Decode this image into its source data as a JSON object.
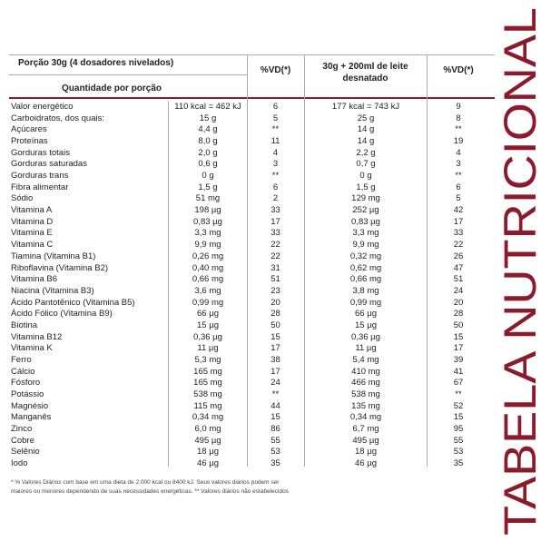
{
  "header": {
    "portion": "Porção 30g (4 dosadores nivelados)",
    "quantity": "Quantidade por porção",
    "columns": [
      "%VD(*)",
      "30g + 200ml de leite desnatado",
      "%VD(*)"
    ]
  },
  "table": {
    "rows": [
      [
        "Valor energético",
        "110 kcal = 462 kJ",
        6,
        "177 kcal = 743 kJ",
        9
      ],
      [
        "Carboidratos, dos quais:",
        "15 g",
        5,
        "25 g",
        8
      ],
      [
        "Açúcares",
        "4,4 g",
        "**",
        "14 g",
        "**"
      ],
      [
        "Proteínas",
        "8,0 g",
        11,
        "14 g",
        19
      ],
      [
        "Gorduras totais",
        "2,0 g",
        4,
        "2,2 g",
        4
      ],
      [
        "Gorduras saturadas",
        "0,6 g",
        3,
        "0,7 g",
        3
      ],
      [
        "Gorduras trans",
        "0 g",
        "**",
        "0 g",
        "**"
      ],
      [
        "Fibra alimentar",
        "1,5 g",
        6,
        "1,5 g",
        6
      ],
      [
        "Sódio",
        "51 mg",
        2,
        "129 mg",
        5
      ],
      [
        "Vitamina A",
        "198 µg",
        33,
        "252 µg",
        42
      ],
      [
        "Vitamina D",
        "0,83 µg",
        17,
        "0,83 µg",
        17
      ],
      [
        "Vitamina E",
        "3,3 mg",
        33,
        "3,3 mg",
        33
      ],
      [
        "Vitamina C",
        "9,9 mg",
        22,
        "9,9 mg",
        22
      ],
      [
        "Tiamina (Vitamina B1)",
        "0,26 mg",
        22,
        "0,32 mg",
        26
      ],
      [
        "Riboflavina (Vitamina B2)",
        "0,40 mg",
        31,
        "0,62 mg",
        47
      ],
      [
        "Vitamina B6",
        "0,66 mg",
        51,
        "0,66 mg",
        51
      ],
      [
        "Niacina (Vitamina B3)",
        "3,6 mg",
        23,
        "3,8 mg",
        24
      ],
      [
        "Ácido Pantotênico (Vitamina B5)",
        "0,99 mg",
        20,
        "0,99 mg",
        20
      ],
      [
        "Ácido Fólico (Vitamina B9)",
        "66 µg",
        28,
        "66 µg",
        28
      ],
      [
        "Biotina",
        "15 µg",
        50,
        "15 µg",
        50
      ],
      [
        "Vitamina B12",
        "0,36 µg",
        15,
        "0,36 µg",
        15
      ],
      [
        "Vitamina K",
        "11 µg",
        17,
        "11 µg",
        17
      ],
      [
        "Ferro",
        "5,3 mg",
        38,
        "5,4 mg",
        39
      ],
      [
        "Cálcio",
        "165 mg",
        17,
        "410 mg",
        41
      ],
      [
        "Fósforo",
        "165 mg",
        24,
        "466 mg",
        67
      ],
      [
        "Potássio",
        "538 mg",
        "**",
        "538 mg",
        "**"
      ],
      [
        "Magnésio",
        "115 mg",
        44,
        "135 mg",
        52
      ],
      [
        "Manganês",
        "0,34 mg",
        15,
        "0,34 mg",
        15
      ],
      [
        "Zinco",
        "6,0 mg",
        86,
        "6,7 mg",
        95
      ],
      [
        "Cobre",
        "495 µg",
        55,
        "495 µg",
        55
      ],
      [
        "Selênio",
        "18 µg",
        53,
        "18 µg",
        53
      ],
      [
        "Iodo",
        "46 µg",
        35,
        "46 µg",
        35
      ]
    ]
  },
  "footnote": [
    "* % Valores Diários com base em uma dieta de 2.000 kcal ou 8400 kJ. Seus valores diários podem ser",
    "maiores ou menores dependendo de suas necessidades energéticas. ** Valores diários não estabelecidos"
  ],
  "side_title": "TABELA NUTRICIONAL"
}
